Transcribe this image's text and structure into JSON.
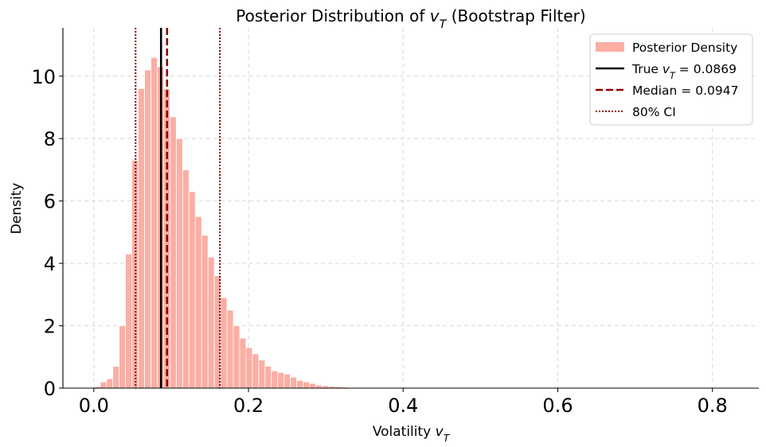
{
  "chart_data": {
    "type": "bar",
    "title": "Posterior Distribution of v_T (Bootstrap Filter)",
    "xlabel": "Volatility v_T",
    "ylabel": "Density",
    "xlim": [
      -0.04,
      0.86
    ],
    "ylim": [
      0,
      11.55
    ],
    "x_ticks": [
      0.0,
      0.2,
      0.4,
      0.6,
      0.8
    ],
    "x_tick_labels": [
      "0.0",
      "0.2",
      "0.4",
      "0.6",
      "0.8"
    ],
    "y_ticks": [
      0,
      2,
      4,
      6,
      8,
      10
    ],
    "y_tick_labels": [
      "0",
      "2",
      "4",
      "6",
      "8",
      "10"
    ],
    "grid": true,
    "legend_position": "top-right",
    "bin_width": 0.0082,
    "histogram": {
      "name": "Posterior Density",
      "color": "#fbaea4",
      "bin_starts": [
        0.0,
        0.0082,
        0.0164,
        0.0246,
        0.0328,
        0.041,
        0.0492,
        0.0574,
        0.0656,
        0.0738,
        0.082,
        0.0902,
        0.0984,
        0.1066,
        0.1148,
        0.123,
        0.1312,
        0.1394,
        0.1476,
        0.1558,
        0.164,
        0.1722,
        0.1804,
        0.1886,
        0.1968,
        0.205,
        0.2132,
        0.2214,
        0.2296,
        0.2378,
        0.246,
        0.2542,
        0.2624,
        0.2706,
        0.2788,
        0.287,
        0.2952,
        0.3034,
        0.3116,
        0.3198,
        0.328,
        0.3362,
        0.3444,
        0.3526
      ],
      "values": [
        0.05,
        0.2,
        0.3,
        0.7,
        2.0,
        4.3,
        7.3,
        9.6,
        10.2,
        10.6,
        10.3,
        9.6,
        8.7,
        8.0,
        7.0,
        6.3,
        5.5,
        4.9,
        4.2,
        3.6,
        2.9,
        2.5,
        2.0,
        1.6,
        1.3,
        1.1,
        0.9,
        0.7,
        0.55,
        0.5,
        0.45,
        0.35,
        0.25,
        0.2,
        0.15,
        0.1,
        0.08,
        0.06,
        0.05,
        0.04,
        0.02,
        0.01,
        0.01,
        0.005
      ]
    },
    "reference_lines": [
      {
        "name": "True v_T = 0.0869",
        "x": 0.0869,
        "color": "#000000",
        "style": "solid"
      },
      {
        "name": "Median = 0.0947",
        "x": 0.0947,
        "color": "#8b0000",
        "style": "dashed"
      },
      {
        "name": "80% CI",
        "x": 0.054,
        "color": "#8b0000",
        "style": "dotted"
      },
      {
        "name": "80% CI",
        "x": 0.163,
        "color": "#8b0000",
        "style": "dotted"
      }
    ],
    "legend": [
      {
        "label": "Posterior Density",
        "kind": "patch",
        "color": "#fbaea4"
      },
      {
        "label": "True v_T = 0.0869",
        "kind": "line",
        "color": "#000000",
        "style": "solid"
      },
      {
        "label": "Median = 0.0947",
        "kind": "line",
        "color": "#8b0000",
        "style": "dashed"
      },
      {
        "label": "80% CI",
        "kind": "line",
        "color": "#8b0000",
        "style": "dotted"
      }
    ]
  }
}
